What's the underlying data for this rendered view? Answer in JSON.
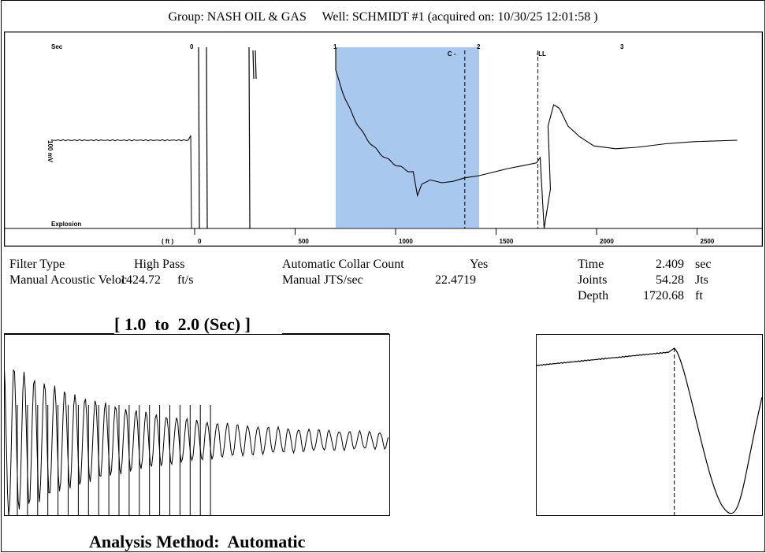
{
  "header": {
    "group_label": "Group:",
    "group": "NASH OIL & GAS",
    "well_label": "Well:",
    "well": "SCHMIDT #1",
    "acquired_label": "acquired on:",
    "acquired": "10/30/25 12:01:58"
  },
  "main_chart": {
    "time_axis_label": "Sec",
    "time_ticks": [
      "0",
      "1",
      "2",
      "3"
    ],
    "depth_axis_label": "( ft )",
    "depth_ticks": [
      "0",
      "500",
      "1000",
      "1500",
      "2000",
      "2500"
    ],
    "marker_collar": "C -",
    "marker_liquid_level": "-LL",
    "y_label": "100 mV",
    "explosion_label": "Explosion",
    "highlight_range_sec": [
      1.0,
      2.0
    ]
  },
  "chart_data": [
    {
      "type": "line",
      "name": "acoustic-trace",
      "x_axis": "time (sec)",
      "xlim": [
        -1.0,
        3.5
      ],
      "highlight": [
        1.0,
        2.0
      ],
      "collar_marker_sec": 1.9,
      "liquid_level_sec": 2.409,
      "points_x": [
        -1.0,
        -0.05,
        -0.02,
        0.0,
        0.02,
        1.0,
        1.05,
        1.2,
        1.35,
        1.5,
        1.55,
        1.6,
        1.75,
        1.9,
        2.0,
        2.2,
        2.4,
        2.45,
        2.5,
        2.55,
        2.75,
        3.0,
        3.5
      ],
      "points_y": [
        0.0,
        0.0,
        0.0,
        -1.6,
        1.6,
        1.6,
        1.0,
        0.1,
        -0.45,
        -0.65,
        -0.75,
        -0.55,
        -0.55,
        -0.5,
        -0.45,
        -0.35,
        -0.3,
        -1.6,
        0.6,
        0.35,
        -0.15,
        -0.1,
        0.0
      ]
    },
    {
      "type": "line",
      "name": "filtered-collar-trace",
      "x_axis": "time (sec)",
      "xlim": [
        1.0,
        2.0
      ],
      "collar_marks_count": 20
    },
    {
      "type": "line",
      "name": "liquid-level-zoom",
      "marker_position": 0.61
    }
  ],
  "info": {
    "filter_type_label": "Filter Type",
    "filter_type": "High Pass",
    "manual_velocity_label": "Manual Acoustic Veloc",
    "manual_velocity": "1424.72",
    "manual_velocity_unit": "ft/s",
    "auto_collar_label": "Automatic Collar Count",
    "auto_collar": "Yes",
    "manual_jts_label": "Manual JTS/sec",
    "manual_jts": "22.4719",
    "time_label": "Time",
    "time_value": "2.409",
    "time_unit": "sec",
    "joints_label": "Joints",
    "joints_value": "54.28",
    "joints_unit": "Jts",
    "depth_label": "Depth",
    "depth_value": "1720.68",
    "depth_unit": "ft"
  },
  "collar_panel": {
    "title": "[ 1.0  to  2.0 (Sec) ]"
  },
  "footer": {
    "analysis_label": "Analysis Method:",
    "analysis_value": "Automatic"
  }
}
